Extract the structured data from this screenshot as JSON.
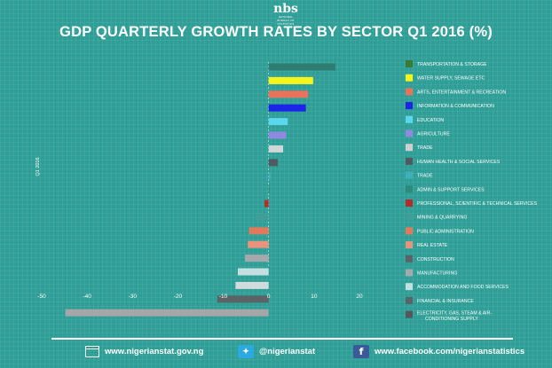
{
  "logo": {
    "mark": "nbs",
    "sub": "NATIONAL BUREAU OF STATISTICS"
  },
  "footer": {
    "website": "www.nigerianstat.gov.ng",
    "twitter": "@nigerianstat",
    "facebook": "www.facebook.com/nigerianstatistics"
  },
  "colors": {
    "background": "#2f9e96",
    "text": "#ffffff",
    "twitter": "#2ba9e0",
    "facebook": "#3b5a99"
  },
  "chart_data": {
    "type": "bar",
    "orientation": "horizontal",
    "title": "GDP QUARTERLY GROWTH RATES BY SECTOR Q1 2016 (%)",
    "ylabel": "Q1 2016",
    "xlabel": "",
    "xlim": [
      -50,
      20
    ],
    "xticks": [
      -50,
      -40,
      -30,
      -20,
      -10,
      0,
      10,
      20
    ],
    "grid": false,
    "legend_position": "right",
    "categories": [
      "TRANSPORTATION & STORAGE",
      "WATER SUPPLY, SEWAGE ETC",
      "ARTS, ENTERTAINMENT & RECREATION",
      "INFORMATION & COMMUNICATION",
      "EDUCATION",
      "AGRICULTURE",
      "TRADE",
      "HUMAN HEALTH & SOCIAL SERVICES",
      "TRADE",
      "ADMIN & SUPPORT SERVICES",
      "PROFESSIONAL, SCIENTIFIC & TECHNICAL SERVICES",
      "MINING & QUARRYING",
      "PUBLIC ADMINISTRATION",
      "REAL ESTATE",
      "CONSTRUCTION",
      "MANUFACTURING",
      "ACCOMMODATION AND FOOD SERVICES",
      "FINANCIAL & INSURANCE",
      "ELECTRICITY, GAS, STEAM  & AIR-CONDITIONING SUPPLY"
    ],
    "legend_colors": [
      "#3a7a36",
      "#f5f51a",
      "#e8725a",
      "#1b24e8",
      "#5ad6ee",
      "#8f8ae0",
      "#cfcfcf",
      "#4f5b60",
      "#3fb0bb",
      "#2c8a7c",
      "#b52a2a",
      "#3f9e98",
      "#e07a5a",
      "#e8937c",
      "#5c6266",
      "#a5a9ab",
      "#c2e0df",
      "#5b6366",
      "#55575b"
    ],
    "values": [
      14.7,
      9.8,
      8.7,
      8.2,
      4.2,
      3.9,
      3.2,
      2.0,
      0.4,
      0.2,
      -0.9,
      -2.8,
      -4.3,
      -4.6,
      -5.2,
      -6.8,
      -7.3,
      -11.3,
      -44.8
    ],
    "bar_colors": [
      "#2f7d72",
      "#f5f51a",
      "#e8725a",
      "#1b24e8",
      "#5ad6ee",
      "#8f8ae0",
      "#cfd8d8",
      "#4f5b60",
      "#3fb0bb",
      "#2c8a7c",
      "#b52a2a",
      "#3f9e98",
      "#e07a5a",
      "#e8937c",
      "#a5a9ab",
      "#c2e0df",
      "#d0dcdc",
      "#5b6366",
      "#a6a5a8"
    ]
  }
}
